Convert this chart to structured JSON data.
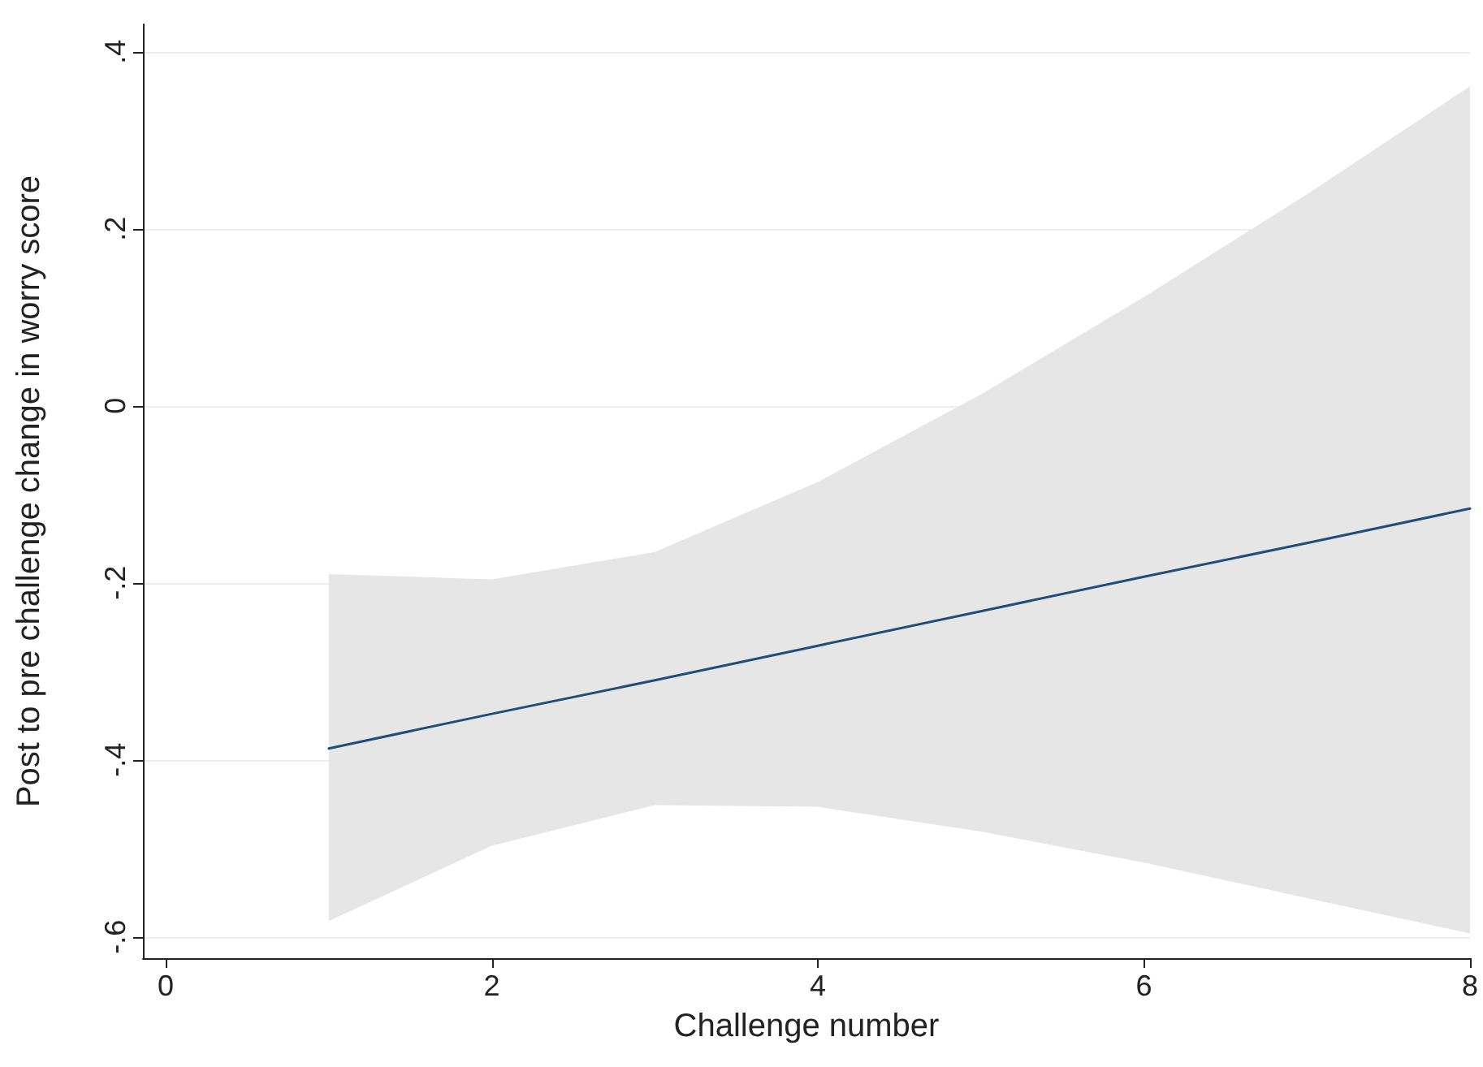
{
  "chart_data": {
    "type": "line",
    "xlabel": "Challenge number",
    "ylabel": "Post to pre challenge change in worry score",
    "x": [
      1,
      2,
      3,
      4,
      5,
      6,
      7,
      8
    ],
    "series": [
      {
        "color": "#1f4e79",
        "values": [
          -0.387,
          -0.348,
          -0.31,
          -0.271,
          -0.232,
          -0.193,
          -0.155,
          -0.116
        ],
        "lower": [
          -0.582,
          -0.497,
          -0.451,
          -0.453,
          -0.481,
          -0.516,
          -0.556,
          -0.596
        ],
        "upper": [
          -0.19,
          -0.196,
          -0.165,
          -0.086,
          0.013,
          0.123,
          0.239,
          0.361
        ]
      }
    ],
    "xlim": [
      -0.14,
      8
    ],
    "xticks": [
      0,
      2,
      4,
      6,
      8
    ],
    "ylim": [
      -0.624,
      0.431
    ],
    "yticks": [
      {
        "value": -0.6,
        "label": "-.6"
      },
      {
        "value": -0.4,
        "label": "-.4"
      },
      {
        "value": -0.2,
        "label": "-.2"
      },
      {
        "value": 0,
        "label": "0"
      },
      {
        "value": 0.2,
        "label": ".2"
      },
      {
        "value": 0.4,
        "label": ".4"
      }
    ],
    "grid": "y",
    "marker": "none",
    "line_style": "solid"
  }
}
